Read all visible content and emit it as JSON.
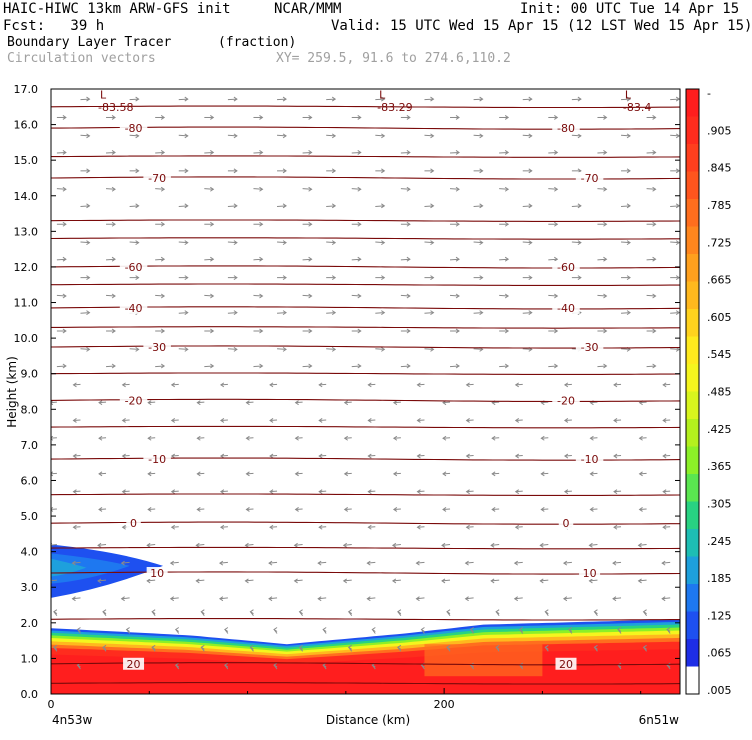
{
  "header": {
    "title_left": "HAIC-HIWC 13km ARW-GFS init",
    "title_org": "NCAR/MMM",
    "init": "Init: 00 UTC Tue 14 Apr 15",
    "fcst": "Fcst:   39 h",
    "valid": "Valid: 15 UTC Wed 15 Apr 15 (12 LST Wed 15 Apr 15)",
    "field1": "Boundary Layer Tracer",
    "field1_units": "(fraction)",
    "field2": "Circulation vectors",
    "xy": "XY= 259.5, 91.6 to 274.6,110.2"
  },
  "chart_data": {
    "type": "cross-section",
    "ylabel": "Height (km)",
    "xlabel": "Distance (km)",
    "ylim": [
      0,
      17
    ],
    "xlim": [
      0,
      320
    ],
    "y_ticks": [
      "0.0",
      "1.0",
      "2.0",
      "3.0",
      "4.0",
      "5.0",
      "6.0",
      "7.0",
      "8.0",
      "9.0",
      "10.0",
      "11.0",
      "12.0",
      "13.0",
      "14.0",
      "15.0",
      "16.0",
      "17.0"
    ],
    "x_ticks": [
      "0",
      "200"
    ],
    "x_ends": [
      "4n53w",
      "6n51w"
    ],
    "colorbar_labels": [
      "-",
      ".905",
      ".845",
      ".785",
      ".725",
      ".665",
      ".605",
      ".545",
      ".485",
      ".425",
      ".365",
      ".305",
      ".245",
      ".185",
      ".125",
      ".065",
      ".005"
    ],
    "colorbar_colors": [
      "#ff1e1e",
      "#ff2c1e",
      "#ff3f1e",
      "#ff551e",
      "#ff6e1e",
      "#ff861e",
      "#ffa01e",
      "#ffb81e",
      "#ffd21e",
      "#ffea1e",
      "#f5f51e",
      "#d8f51e",
      "#b4f01e",
      "#8cf028",
      "#5ae650",
      "#28d282",
      "#1ebeb4",
      "#1ea0dc",
      "#1e78f0",
      "#1e50f0",
      "#1e2ee6",
      "#ffffff"
    ],
    "temperature_contours": [
      {
        "value": -80,
        "height_km": 15.9,
        "labels": [
          "-80",
          "-80"
        ]
      },
      {
        "value": -70,
        "height_km": 14.5,
        "labels": [
          "-70",
          "-70"
        ]
      },
      {
        "value": -60,
        "height_km": 12.0,
        "labels": [
          "-60",
          "-60"
        ]
      },
      {
        "value": -40,
        "height_km": 10.85,
        "labels": [
          "-40",
          "-40"
        ]
      },
      {
        "value": -30,
        "height_km": 9.75,
        "labels": [
          "-30",
          "-30"
        ]
      },
      {
        "value": -20,
        "height_km": 8.25,
        "labels": [
          "-20",
          "-20"
        ]
      },
      {
        "value": -10,
        "height_km": 6.6,
        "labels": [
          "-10",
          "-10"
        ]
      },
      {
        "value": 0,
        "height_km": 4.8,
        "labels": [
          "0",
          "0"
        ]
      },
      {
        "value": 10,
        "height_km": 3.4,
        "labels": [
          "10",
          "10"
        ]
      },
      {
        "value": 20,
        "height_km": 0.85,
        "labels": [
          "20",
          "20"
        ]
      }
    ],
    "extra_contour_heights_km": [
      16.5,
      15.1,
      13.3,
      12.8,
      11.5,
      10.3,
      9.0,
      7.5,
      5.6,
      4.1,
      2.1,
      0.3
    ],
    "lows": [
      {
        "label": "L",
        "value": "-83.58",
        "x_km": 28
      },
      {
        "label": "L",
        "value": "-83.29",
        "x_km": 170
      },
      {
        "label": "L",
        "value": "-83.4",
        "x_km": 295
      }
    ]
  }
}
